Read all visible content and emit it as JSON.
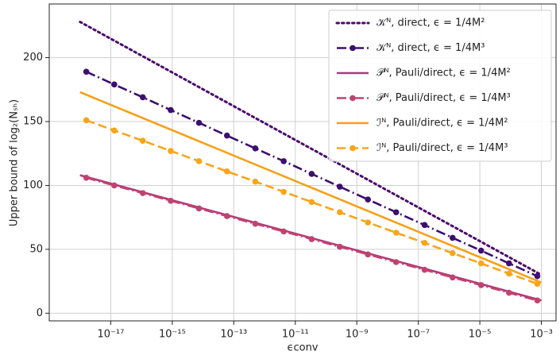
{
  "chart_data": {
    "type": "line",
    "xlabel": "ϵconv",
    "ylabel": "Upper bound of log₂(Nₛₕ)",
    "xscale": "log",
    "grid": true,
    "legend": "upper right",
    "xlim": [
      1e-19,
      0.003
    ],
    "ylim": [
      -6,
      242
    ],
    "xticks": [
      {
        "value": 1e-17,
        "label": "10⁻¹⁷"
      },
      {
        "value": 1e-15,
        "label": "10⁻¹⁵"
      },
      {
        "value": 1e-13,
        "label": "10⁻¹³"
      },
      {
        "value": 1e-11,
        "label": "10⁻¹¹"
      },
      {
        "value": 1e-09,
        "label": "10⁻⁹"
      },
      {
        "value": 1e-07,
        "label": "10⁻⁷"
      },
      {
        "value": 1e-05,
        "label": "10⁻⁵"
      },
      {
        "value": 0.001,
        "label": "10⁻³"
      }
    ],
    "yticks": [
      0,
      50,
      100,
      150,
      200
    ],
    "series": [
      {
        "name": "𝒦ᴺ, direct, ϵ = 1/4M²",
        "color": "#4a0c6b",
        "style": "dotted",
        "markers": false,
        "x": [
          1e-18,
          0.001
        ],
        "values": [
          228,
          30
        ]
      },
      {
        "name": "𝒦ᴺ, direct, ϵ = 1/4M³",
        "color": "#3b0f6f",
        "style": "dashdot",
        "markers": true,
        "x": [
          1.6e-18,
          1.3e-17,
          1.1e-16,
          8.9e-16,
          7.4e-15,
          6e-14,
          5e-13,
          4.2e-12,
          3.4e-11,
          2.8e-10,
          2.3e-09,
          1.9e-08,
          1.6e-07,
          1.3e-06,
          1.1e-05,
          8.9e-05,
          0.00074
        ],
        "values": [
          189,
          179,
          169,
          159,
          149,
          139,
          129,
          119,
          109,
          99,
          89,
          79,
          69,
          59,
          49,
          39,
          29
        ]
      },
      {
        "name": "𝒫ᴺ, Pauli/direct, ϵ = 1/4M²",
        "color": "#b5367a",
        "style": "solid",
        "markers": false,
        "x": [
          1e-18,
          0.001
        ],
        "values": [
          108,
          10
        ]
      },
      {
        "name": "𝒫ᴺ, Pauli/direct, ϵ = 1/4M³",
        "color": "#c0436f",
        "style": "dashdot",
        "markers": true,
        "x": [
          1.6e-18,
          1.3e-17,
          1.1e-16,
          8.9e-16,
          7.4e-15,
          6e-14,
          5e-13,
          4.2e-12,
          3.4e-11,
          2.8e-10,
          2.3e-09,
          1.9e-08,
          1.6e-07,
          1.3e-06,
          1.1e-05,
          8.9e-05,
          0.00074
        ],
        "values": [
          106,
          100,
          94,
          88,
          82,
          76,
          70,
          64,
          58,
          52,
          46,
          40,
          34,
          28,
          22,
          16,
          10
        ]
      },
      {
        "name": "ℐᴺ, Pauli/direct, ϵ = 1/4M²",
        "color": "#f6a019",
        "style": "solid",
        "markers": false,
        "x": [
          1e-18,
          0.001
        ],
        "values": [
          173,
          24
        ]
      },
      {
        "name": "ℐᴺ, Pauli/direct, ϵ = 1/4M³",
        "color": "#f9a51a",
        "style": "dashed",
        "markers": true,
        "x": [
          1.6e-18,
          1.3e-17,
          1.1e-16,
          8.9e-16,
          7.4e-15,
          6e-14,
          5e-13,
          4.2e-12,
          3.4e-11,
          2.8e-10,
          2.3e-09,
          1.9e-08,
          1.6e-07,
          1.3e-06,
          1.1e-05,
          8.9e-05,
          0.00074
        ],
        "values": [
          151,
          143,
          135,
          127,
          119,
          111,
          103,
          95,
          87,
          79,
          71,
          63,
          55,
          47,
          39,
          31,
          23
        ]
      }
    ]
  }
}
